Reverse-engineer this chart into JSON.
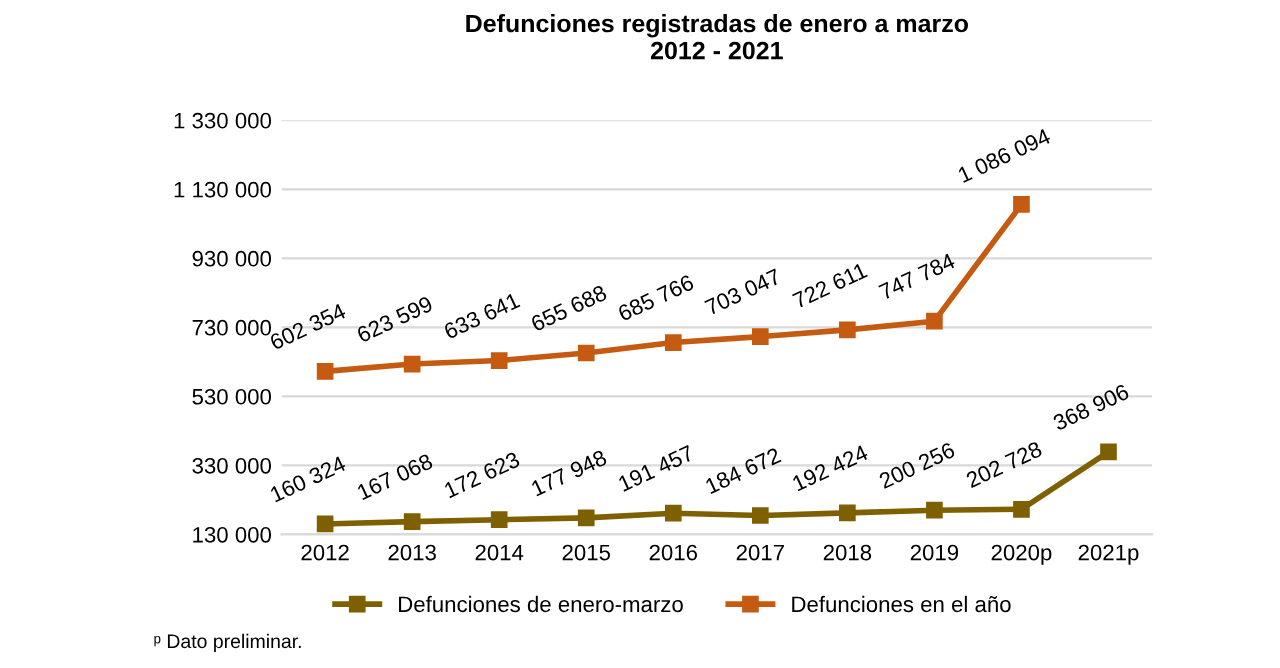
{
  "chart_data": {
    "type": "line",
    "title": "Defunciones registradas de enero a marzo\n2012 - 2021",
    "categories": [
      "2012",
      "2013",
      "2014",
      "2015",
      "2016",
      "2017",
      "2018",
      "2019",
      "2020p",
      "2021p"
    ],
    "series": [
      {
        "name": "Defunciones de enero-marzo",
        "color": "#7f6000",
        "values": [
          160324,
          167068,
          172623,
          177948,
          191457,
          184672,
          192424,
          200256,
          202728,
          368906
        ]
      },
      {
        "name": "Defunciones en el año",
        "color": "#c55a11",
        "values": [
          602354,
          623599,
          633641,
          655688,
          685766,
          703047,
          722611,
          747784,
          1086094,
          null
        ]
      }
    ],
    "ylim": [
      130000,
      1330000
    ],
    "yticks": [
      {
        "value": 130000,
        "label": "130 000"
      },
      {
        "value": 330000,
        "label": "330 000"
      },
      {
        "value": 530000,
        "label": "530 000"
      },
      {
        "value": 730000,
        "label": "730 000"
      },
      {
        "value": 930000,
        "label": "930 000"
      },
      {
        "value": 1130000,
        "label": "1 130 000"
      },
      {
        "value": 1330000,
        "label": "1 330 000"
      }
    ],
    "grid": "y",
    "legend": "bottom",
    "marker": "square",
    "line_style": "solid",
    "data_labels": true,
    "annotations": [
      "ᵖ Dato preliminar."
    ]
  }
}
